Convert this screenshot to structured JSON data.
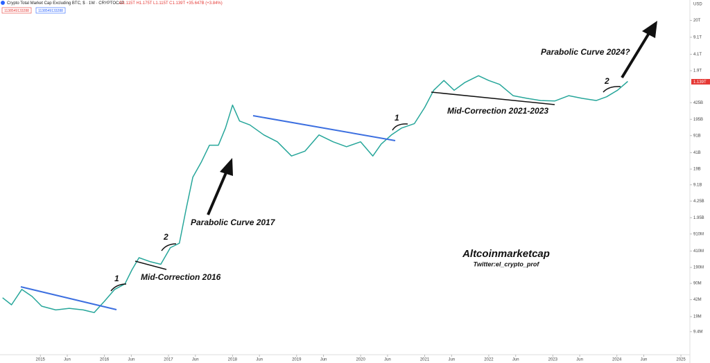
{
  "header": {
    "symbol": "Crypto Total Market Cap Excluding BTC, $ · 1W · CRYPTOCAP",
    "ohlc": "O1.115T H1.175T L1.115T C1.139T +35.647B (+3.84%)",
    "boxes": [
      "1138549133288",
      "1138549133288"
    ],
    "currency": "USD",
    "last_price": "1.139T"
  },
  "annotations": [
    "1",
    "2",
    "Parabolic Curve 2017",
    "Mid-Correction 2016",
    "1",
    "Mid-Correction 2021-2023",
    "2",
    "Parabolic Curve 2024?",
    "Altcoinmarketcap",
    "Twitter:el_crypto_prof"
  ],
  "chart_data": {
    "type": "line",
    "log_scale": true,
    "color": "#26a69a",
    "x": [
      2014.41,
      2014.55,
      2014.71,
      2014.87,
      2015.02,
      2015.24,
      2015.45,
      2015.67,
      2015.84,
      2016.0,
      2016.16,
      2016.32,
      2016.43,
      2016.54,
      2016.71,
      2016.88,
      2017.03,
      2017.17,
      2017.28,
      2017.38,
      2017.51,
      2017.64,
      2017.78,
      2017.89,
      2018.0,
      2018.11,
      2018.27,
      2018.49,
      2018.7,
      2018.92,
      2019.13,
      2019.35,
      2019.57,
      2019.78,
      2020.0,
      2020.19,
      2020.32,
      2020.48,
      2020.64,
      2020.84,
      2021.0,
      2021.14,
      2021.3,
      2021.46,
      2021.63,
      2021.84,
      2022.0,
      2022.17,
      2022.38,
      2022.6,
      2022.81,
      2023.03,
      2023.25,
      2023.46,
      2023.68,
      2023.84,
      2024.01,
      2024.17
    ],
    "values": [
      46000000,
      33000000,
      68000000,
      49000000,
      31000000,
      26000000,
      28000000,
      26000000,
      23000000,
      39000000,
      68000000,
      88000000,
      170000000,
      300000000,
      250000000,
      220000000,
      480000000,
      590000000,
      3100000000,
      13000000000,
      26000000000,
      58000000000,
      58000000000,
      130000000000,
      380000000000,
      180000000000,
      150000000000,
      94000000000,
      68000000000,
      35000000000,
      44000000000,
      94000000000,
      68000000000,
      54000000000,
      68000000000,
      35000000000,
      61000000000,
      94000000000,
      130000000000,
      160000000000,
      340000000000,
      760000000000,
      1200000000000,
      760000000000,
      1100000000000,
      1500000000000,
      1200000000000,
      1000000000000,
      590000000000,
      520000000000,
      470000000000,
      460000000000,
      590000000000,
      520000000000,
      470000000000,
      560000000000,
      760000000000,
      1150000000000
    ],
    "xlim": [
      2014.37,
      2025.14
    ],
    "xticks": [
      2015,
      {
        "value": 2015.42,
        "label": "Jun"
      },
      2016,
      {
        "value": 2016.42,
        "label": "Jun"
      },
      2017,
      {
        "value": 2017.42,
        "label": "Jun"
      },
      2018,
      {
        "value": 2018.42,
        "label": "Jun"
      },
      2019,
      {
        "value": 2019.42,
        "label": "Jun"
      },
      2020,
      {
        "value": 2020.42,
        "label": "Jun"
      },
      2021,
      {
        "value": 2021.42,
        "label": "Jun"
      },
      2022,
      {
        "value": 2022.42,
        "label": "Jun"
      },
      2023,
      {
        "value": 2023.42,
        "label": "Jun"
      },
      2024,
      {
        "value": 2024.42,
        "label": "Jun"
      },
      2025
    ],
    "ylim": [
      3200000,
      52000000000000
    ],
    "yticks": [
      {
        "value": 20000000000000,
        "label": "20T"
      },
      {
        "value": 9100000000000,
        "label": "9.1T"
      },
      {
        "value": 4100000000000,
        "label": "4.1T"
      },
      {
        "value": 1900000000000,
        "label": "1.9T"
      },
      {
        "value": 425000000000,
        "label": "425B"
      },
      {
        "value": 195000000000,
        "label": "195B"
      },
      {
        "value": 91000000000,
        "label": "91B"
      },
      {
        "value": 41000000000,
        "label": "41B"
      },
      {
        "value": 19000000000,
        "label": "19B"
      },
      {
        "value": 9100000000,
        "label": "9.1B"
      },
      {
        "value": 4250000000,
        "label": "4.25B"
      },
      {
        "value": 1950000000,
        "label": "1.95B"
      },
      {
        "value": 910000000,
        "label": "910M"
      },
      {
        "value": 410000000,
        "label": "410M"
      },
      {
        "value": 190000000,
        "label": "190M"
      },
      {
        "value": 90000000,
        "label": "90M"
      },
      {
        "value": 42000000,
        "label": "42M"
      },
      {
        "value": 19000000,
        "label": "19M"
      },
      {
        "value": 9400000,
        "label": "9.4M"
      }
    ]
  }
}
